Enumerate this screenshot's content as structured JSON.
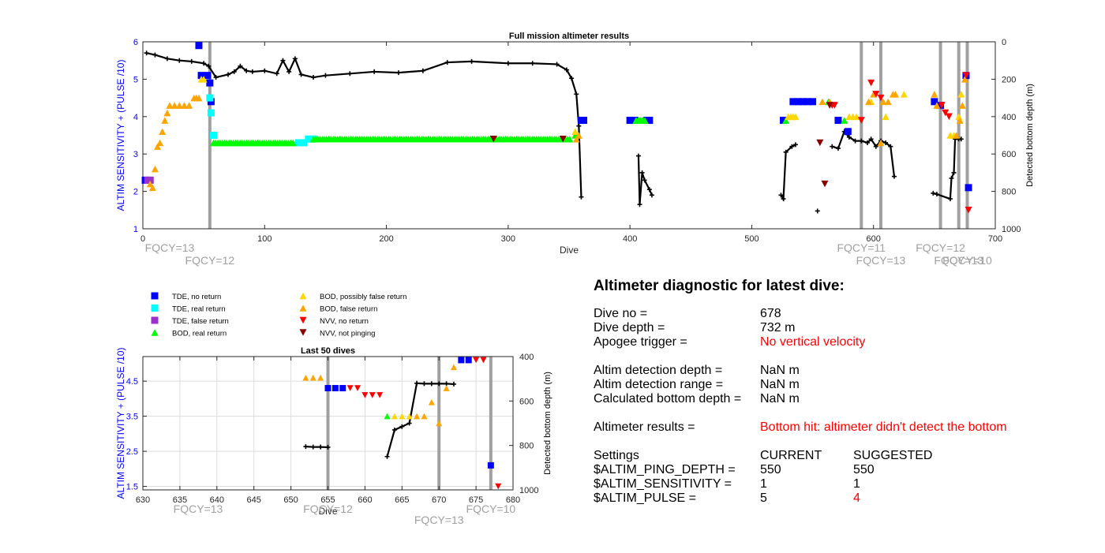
{
  "colors": {
    "blue_axis": "#0000ff",
    "tde_no_return": "#0000ff",
    "tde_real_return": "#00ffff",
    "tde_false_return": "#9933cc",
    "bod_real_return": "#00ff00",
    "bod_possibly_false": "#ffd700",
    "bod_false_return": "#ffa500",
    "nvv_no_return": "#ff0000",
    "nvv_not_pinging": "#8b0000",
    "depth_line": "#000000",
    "fqcy_line": "#a0a0a0",
    "alert_text": "#ff0000"
  },
  "legend": {
    "items": [
      {
        "label": "TDE, no return",
        "marker": "square",
        "color": "#0000ff"
      },
      {
        "label": "TDE, real return",
        "marker": "square",
        "color": "#00ffff"
      },
      {
        "label": "TDE, false return",
        "marker": "square",
        "color": "#9933cc"
      },
      {
        "label": "BOD, real return",
        "marker": "triangle-up",
        "color": "#00ff00"
      },
      {
        "label": "BOD, possibly false return",
        "marker": "triangle-up",
        "color": "#ffd700"
      },
      {
        "label": "BOD, false return",
        "marker": "triangle-up",
        "color": "#ffa500"
      },
      {
        "label": "NVV, no return",
        "marker": "triangle-down",
        "color": "#ff0000"
      },
      {
        "label": "NVV, not pinging",
        "marker": "triangle-down",
        "color": "#8b0000"
      }
    ]
  },
  "chart_data": [
    {
      "type": "scatter",
      "title": "Full mission altimeter results",
      "xlabel": "Dive",
      "ylabel_left": "ALTIM SENSITIVITY + (PULSE /10)",
      "ylabel_right": "Detected bottom depth (m)",
      "xlim": [
        0,
        700
      ],
      "ylim_left": [
        1,
        6
      ],
      "ylim_right": [
        1000,
        0
      ],
      "right_axis_reversed": true,
      "x_ticks": [
        "0",
        "100",
        "200",
        "300",
        "400",
        "500",
        "600",
        "700"
      ],
      "y_left_ticks": [
        "1",
        "2",
        "3",
        "4",
        "5",
        "6"
      ],
      "y_right_ticks": [
        "1000",
        "800",
        "600",
        "400",
        "200",
        "0"
      ],
      "grid": false,
      "fqcy_lines": [
        {
          "x": 55,
          "label": "FQCY=12"
        },
        {
          "x": 590,
          "label": "FQCY=11"
        },
        {
          "x": 606,
          "label": "FQCY=13"
        },
        {
          "x": 655,
          "label": "FQCY=12"
        },
        {
          "x": 670,
          "label": "FQCY=13"
        },
        {
          "x": 677,
          "label": "FQCY=10"
        }
      ],
      "fqcy_start_label": "FQCY=13",
      "settings_series": [
        {
          "name": "TDE, no return",
          "marker": "square",
          "color": "#0000ff",
          "x": [
            2,
            46,
            48,
            53,
            55,
            56,
            360,
            362,
            400,
            404,
            414,
            416,
            526,
            534,
            538,
            542,
            546,
            550,
            571,
            579,
            650,
            655,
            676,
            678
          ],
          "y": [
            2.3,
            5.9,
            5.1,
            5.1,
            4.9,
            4.4,
            3.9,
            3.9,
            3.9,
            3.9,
            3.9,
            3.9,
            3.9,
            4.4,
            4.4,
            4.4,
            4.4,
            4.4,
            3.9,
            3.6,
            4.4,
            4.3,
            5.1,
            2.1
          ]
        },
        {
          "name": "TDE, real return",
          "marker": "square",
          "color": "#00ffff",
          "x": [
            55,
            56,
            58,
            128,
            132,
            136,
            140
          ],
          "y": [
            4.5,
            4.1,
            3.5,
            3.3,
            3.3,
            3.4,
            3.4
          ]
        },
        {
          "name": "TDE, false return",
          "marker": "square",
          "color": "#9933cc",
          "x": [
            4,
            6
          ],
          "y": [
            2.3,
            2.3
          ]
        },
        {
          "name": "BOD, real return",
          "marker": "triangle-up",
          "color": "#00ff00",
          "x_range_markers": [
            [
              58,
              125,
              3.3
            ],
            [
              140,
              352,
              3.4
            ],
            [
              405,
              414,
              3.9
            ]
          ],
          "x": [
            355,
            408,
            410,
            528,
            563,
            576
          ],
          "y": [
            3.5,
            3.9,
            3.9,
            3.9,
            4.4,
            3.9
          ]
        },
        {
          "name": "BOD, possibly false return",
          "marker": "triangle-up",
          "color": "#ffd700",
          "x": [
            48,
            50,
            355,
            530,
            532,
            534,
            536,
            580,
            583,
            586,
            598,
            610,
            625,
            663,
            666,
            670,
            672
          ],
          "y": [
            5.0,
            5.0,
            3.6,
            4.0,
            4.0,
            4.0,
            4.0,
            4.0,
            4.0,
            4.0,
            4.4,
            4.0,
            4.6,
            3.5,
            3.5,
            4.0,
            4.6
          ]
        },
        {
          "name": "BOD, false return",
          "marker": "triangle-up",
          "color": "#ffa500",
          "x": [
            6,
            8,
            10,
            12,
            14,
            16,
            18,
            20,
            22,
            26,
            30,
            34,
            38,
            42,
            44,
            46,
            356,
            358,
            558,
            564,
            596,
            600,
            606,
            608,
            612,
            616,
            618,
            650,
            652,
            668,
            671,
            673,
            675
          ],
          "y": [
            2.2,
            2.1,
            2.6,
            3.2,
            3.3,
            3.6,
            3.9,
            4.1,
            4.3,
            4.3,
            4.3,
            4.3,
            4.3,
            4.5,
            4.5,
            4.5,
            3.4,
            3.5,
            4.4,
            4.4,
            4.4,
            4.6,
            3.3,
            4.4,
            4.4,
            4.6,
            4.6,
            4.6,
            4.3,
            3.5,
            3.9,
            4.3,
            5.0
          ]
        },
        {
          "name": "NVV, no return",
          "marker": "triangle-down",
          "color": "#ff0000",
          "x": [
            566,
            568,
            590,
            598,
            602,
            606,
            656,
            659,
            662,
            676,
            678
          ],
          "y": [
            4.3,
            4.3,
            3.9,
            4.9,
            4.6,
            4.5,
            4.3,
            4.1,
            4.0,
            5.1,
            1.5
          ]
        },
        {
          "name": "NVV, not pinging",
          "marker": "triangle-down",
          "color": "#8b0000",
          "x": [
            288,
            345,
            556,
            560,
            564
          ],
          "y": [
            3.4,
            3.4,
            3.3,
            2.2,
            4.3
          ]
        }
      ],
      "depth_series": {
        "name": "Detected bottom depth",
        "segments": [
          [
            [
              3,
              60
            ],
            [
              10,
              70
            ],
            [
              20,
              90
            ],
            [
              30,
              100
            ],
            [
              40,
              105
            ],
            [
              50,
              115
            ],
            [
              54,
              130
            ],
            [
              60,
              190
            ],
            [
              70,
              175
            ],
            [
              75,
              160
            ],
            [
              80,
              130
            ],
            [
              85,
              155
            ],
            [
              90,
              160
            ],
            [
              100,
              155
            ],
            [
              110,
              170
            ],
            [
              115,
              100
            ],
            [
              120,
              160
            ],
            [
              125,
              90
            ],
            [
              130,
              175
            ],
            [
              140,
              190
            ],
            [
              150,
              180
            ],
            [
              170,
              170
            ],
            [
              190,
              160
            ],
            [
              210,
              165
            ],
            [
              230,
              155
            ],
            [
              250,
              110
            ],
            [
              270,
              105
            ],
            [
              300,
              115
            ],
            [
              320,
              115
            ],
            [
              340,
              120
            ],
            [
              348,
              150
            ],
            [
              352,
              195
            ],
            [
              356,
              280
            ],
            [
              358,
              450
            ],
            [
              360,
              830
            ]
          ],
          [
            [
              407,
              610
            ],
            [
              408,
              870
            ],
            [
              410,
              700
            ],
            [
              412,
              740
            ],
            [
              416,
              790
            ],
            [
              418,
              820
            ]
          ],
          [
            [
              524,
              820
            ],
            [
              526,
              840
            ],
            [
              528,
              590
            ],
            [
              533,
              560
            ],
            [
              536,
              550
            ]
          ],
          [
            [
              554,
              905
            ]
          ],
          [
            [
              566,
              560
            ],
            [
              571,
              570
            ],
            [
              576,
              480
            ],
            [
              580,
              510
            ],
            [
              585,
              530
            ],
            [
              590,
              530
            ],
            [
              595,
              540
            ],
            [
              598,
              520
            ],
            [
              602,
              560
            ],
            [
              606,
              530
            ],
            [
              610,
              540
            ],
            [
              614,
              560
            ],
            [
              617,
              720
            ]
          ],
          [
            [
              649,
              810
            ],
            [
              652,
              815
            ],
            [
              663,
              840
            ],
            [
              664,
              730
            ],
            [
              666,
              700
            ],
            [
              667,
              520
            ],
            [
              670,
              520
            ],
            [
              672,
              520
            ]
          ]
        ]
      }
    },
    {
      "type": "scatter",
      "title": "Last 50 dives",
      "xlabel": "Dive",
      "ylabel_left": "ALTIM SENSITIVITY + (PULSE /10)",
      "ylabel_right": "Detected bottom depth (m)",
      "xlim": [
        630,
        680
      ],
      "ylim_left": [
        1.4,
        5.2
      ],
      "ylim_right": [
        1000,
        400
      ],
      "right_axis_reversed": true,
      "x_ticks": [
        "630",
        "635",
        "640",
        "645",
        "650",
        "655",
        "660",
        "665",
        "670",
        "675",
        "680"
      ],
      "y_left_ticks": [
        "1.5",
        "2.5",
        "3.5",
        "4.5"
      ],
      "y_right_ticks": [
        "1000",
        "800",
        "600",
        "400"
      ],
      "grid": true,
      "fqcy_lines": [
        {
          "x": 655,
          "label": "FQCY=12"
        },
        {
          "x": 670,
          "label": "FQCY=13"
        },
        {
          "x": 677,
          "label": "FQCY=10"
        }
      ],
      "fqcy_start_label": "FQCY=13",
      "settings_series": [
        {
          "name": "TDE, no return",
          "marker": "square",
          "color": "#0000ff",
          "x": [
            655,
            656,
            657,
            673,
            674,
            677
          ],
          "y": [
            4.3,
            4.3,
            4.3,
            5.1,
            5.1,
            2.1
          ]
        },
        {
          "name": "BOD, real return",
          "marker": "triangle-up",
          "color": "#00ff00",
          "x": [
            663
          ],
          "y": [
            3.5
          ]
        },
        {
          "name": "BOD, possibly false return",
          "marker": "triangle-up",
          "color": "#ffd700",
          "x": [
            664,
            665,
            666
          ],
          "y": [
            3.5,
            3.5,
            3.5
          ]
        },
        {
          "name": "BOD, false return",
          "marker": "triangle-up",
          "color": "#ffa500",
          "x": [
            652,
            653,
            654,
            667,
            668,
            669,
            670,
            671,
            672
          ],
          "y": [
            4.6,
            4.6,
            4.6,
            3.5,
            3.5,
            3.9,
            3.3,
            4.3,
            4.9
          ]
        },
        {
          "name": "NVV, no return",
          "marker": "triangle-down",
          "color": "#ff0000",
          "x": [
            658,
            659,
            660,
            661,
            662,
            675,
            676,
            678
          ],
          "y": [
            4.3,
            4.3,
            4.1,
            4.1,
            4.1,
            5.1,
            5.1,
            1.5
          ]
        }
      ],
      "depth_series": {
        "name": "Detected bottom depth",
        "segments": [
          [
            [
              652,
              805
            ],
            [
              653,
              807
            ],
            [
              654,
              807
            ],
            [
              655,
              808
            ]
          ],
          [
            [
              663,
              850
            ],
            [
              664,
              730
            ],
            [
              665,
              715
            ],
            [
              666,
              700
            ],
            [
              667,
              520
            ],
            [
              668,
              522
            ],
            [
              669,
              522
            ],
            [
              670,
              522
            ],
            [
              671,
              522
            ],
            [
              672,
              524
            ]
          ]
        ]
      }
    }
  ],
  "diagnostic": {
    "title": "Altimeter diagnostic for latest dive:",
    "rows": [
      {
        "key": "Dive no =",
        "value": "678"
      },
      {
        "key": "Dive depth =",
        "value": "732 m"
      },
      {
        "key": "Apogee trigger =",
        "value": "No vertical velocity",
        "alert": true
      },
      {
        "key": "Altim detection depth =",
        "value": "NaN m"
      },
      {
        "key": "Altim detection range =",
        "value": "NaN m"
      },
      {
        "key": "Calculated bottom depth =",
        "value": "NaN m"
      },
      {
        "key": "Altimeter results =",
        "value": "Bottom hit: altimeter didn't detect the bottom",
        "alert": true
      }
    ],
    "settings_header": {
      "key": "Settings",
      "current": "CURRENT",
      "suggested": "SUGGESTED"
    },
    "settings": [
      {
        "key": "$ALTIM_PING_DEPTH =",
        "current": "550",
        "suggested": "550"
      },
      {
        "key": "$ALTIM_SENSITIVITY =",
        "current": "1",
        "suggested": "1"
      },
      {
        "key": "$ALTIM_PULSE =",
        "current": "5",
        "suggested": "4",
        "changed": true
      }
    ]
  }
}
